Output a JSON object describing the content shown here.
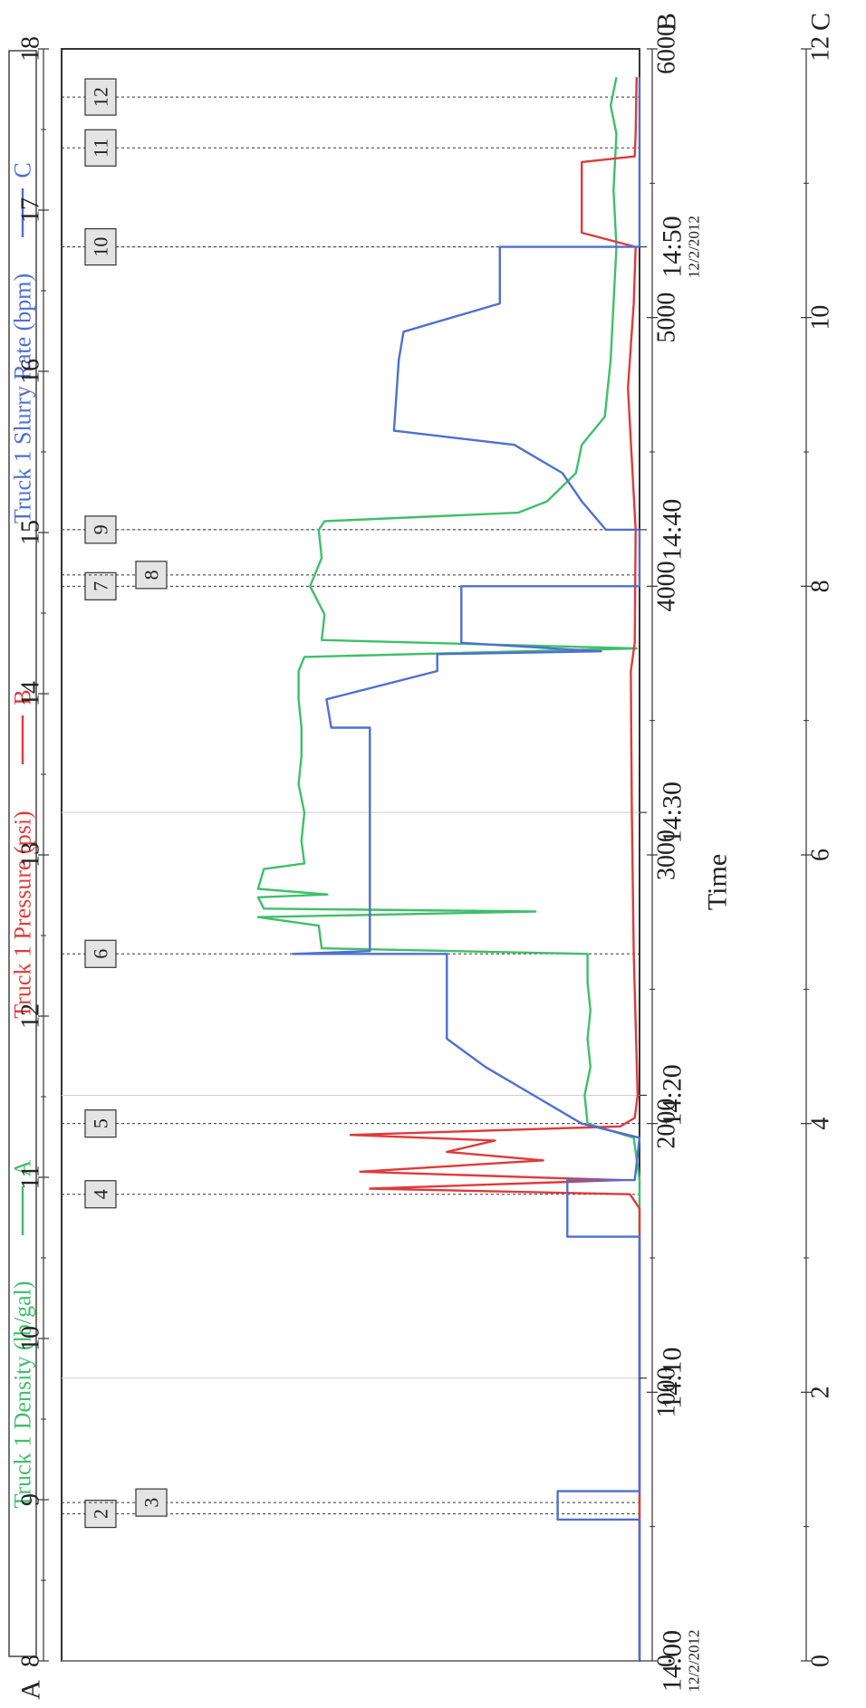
{
  "chart_data": {
    "type": "line",
    "orientation": "rotated-90-counterclockwise",
    "x_axis": {
      "label": "Time",
      "date_label": "12/2/2012",
      "ticks": [
        "14:00",
        "14:10",
        "14:20",
        "14:30",
        "14:40",
        "14:50"
      ],
      "range": [
        "14:00",
        "14:57"
      ]
    },
    "axes": [
      {
        "key": "A",
        "letter": "A",
        "range": [
          8,
          18
        ],
        "ticks": [
          "8",
          "9",
          "10",
          "11",
          "12",
          "13",
          "14",
          "15",
          "16",
          "17",
          "18"
        ]
      },
      {
        "key": "B",
        "letter": "B",
        "range": [
          0,
          6000
        ],
        "ticks": [
          "0",
          "1000",
          "2000",
          "3000",
          "4000",
          "5000",
          "6000"
        ]
      },
      {
        "key": "C",
        "letter": "C",
        "range": [
          0,
          12
        ],
        "ticks": [
          "0",
          "2",
          "4",
          "6",
          "8",
          "10",
          "12"
        ]
      }
    ],
    "legend_placement": "top",
    "grid": true,
    "series": [
      {
        "name": "Truck 1 Density (lb/gal)",
        "axis": "A",
        "axis_letter": "A",
        "color": "#3fbf6a",
        "points": [
          [
            "14:00",
            8.0
          ],
          [
            "14:17",
            8.0
          ],
          [
            "14:18.5",
            8.1
          ],
          [
            "14:19",
            8.9
          ],
          [
            "14:20",
            8.95
          ],
          [
            "14:21",
            8.85
          ],
          [
            "14:22",
            8.9
          ],
          [
            "14:23",
            8.85
          ],
          [
            "14:24",
            8.9
          ],
          [
            "14:25",
            8.9
          ],
          [
            "14:25.2",
            13.5
          ],
          [
            "14:26",
            13.55
          ],
          [
            "14:26.3",
            14.6
          ],
          [
            "14:26.5",
            9.8
          ],
          [
            "14:26.6",
            14.5
          ],
          [
            "14:27",
            14.6
          ],
          [
            "14:27.1",
            13.4
          ],
          [
            "14:27.3",
            14.6
          ],
          [
            "14:28",
            14.5
          ],
          [
            "14:28.2",
            13.8
          ],
          [
            "14:29",
            13.85
          ],
          [
            "14:30",
            13.8
          ],
          [
            "14:31",
            13.9
          ],
          [
            "14:32",
            13.85
          ],
          [
            "14:33",
            13.85
          ],
          [
            "14:34",
            13.9
          ],
          [
            "14:35",
            13.9
          ],
          [
            "14:35.5",
            13.8
          ],
          [
            "14:35.8",
            8.05
          ],
          [
            "14:36.1",
            13.5
          ],
          [
            "14:37",
            13.45
          ],
          [
            "14:38",
            13.7
          ],
          [
            "14:39",
            13.5
          ],
          [
            "14:40",
            13.55
          ],
          [
            "14:40.3",
            13.45
          ],
          [
            "14:40.6",
            10.1
          ],
          [
            "14:41",
            9.6
          ],
          [
            "14:42",
            9.1
          ],
          [
            "14:43",
            9.0
          ],
          [
            "14:44",
            8.6
          ],
          [
            "14:46",
            8.5
          ],
          [
            "14:48",
            8.45
          ],
          [
            "14:50",
            8.4
          ],
          [
            "14:52",
            8.45
          ],
          [
            "14:54",
            8.4
          ],
          [
            "14:55",
            8.5
          ],
          [
            "14:56",
            8.4
          ]
        ]
      },
      {
        "name": "Truck 1 Pressure (psi)",
        "axis": "B",
        "axis_letter": "B",
        "color": "#e03a3a",
        "points": [
          [
            "14:00",
            0
          ],
          [
            "14:16",
            0
          ],
          [
            "14:16.5",
            100
          ],
          [
            "14:16.7",
            2800
          ],
          [
            "14:17",
            200
          ],
          [
            "14:17.3",
            2900
          ],
          [
            "14:17.7",
            1000
          ],
          [
            "14:18",
            2000
          ],
          [
            "14:18.4",
            1500
          ],
          [
            "14:18.6",
            3000
          ],
          [
            "14:18.9",
            200
          ],
          [
            "14:19.2",
            50
          ],
          [
            "14:20",
            20
          ],
          [
            "14:25",
            60
          ],
          [
            "14:30",
            80
          ],
          [
            "14:35",
            90
          ],
          [
            "14:36",
            50
          ],
          [
            "14:40",
            40
          ],
          [
            "14:45",
            120
          ],
          [
            "14:48",
            60
          ],
          [
            "14:50",
            40
          ],
          [
            "14:50.5",
            600
          ],
          [
            "14:53",
            600
          ],
          [
            "14:53.2",
            50
          ],
          [
            "14:54",
            40
          ],
          [
            "14:56",
            30
          ]
        ]
      },
      {
        "name": "Truck 1 Slurry Rate (bpm)",
        "axis": "C",
        "axis_letter": "C",
        "color": "#4f6fd0",
        "points": [
          [
            "14:00",
            0
          ],
          [
            "14:05",
            0
          ],
          [
            "14:05",
            1.7
          ],
          [
            "14:06",
            1.7
          ],
          [
            "14:06",
            0
          ],
          [
            "14:15",
            0
          ],
          [
            "14:15",
            1.5
          ],
          [
            "14:17",
            1.5
          ],
          [
            "14:17",
            0.1
          ],
          [
            "14:18.5",
            0
          ],
          [
            "14:19",
            1.2
          ],
          [
            "14:20",
            2.2
          ],
          [
            "14:21",
            3.2
          ],
          [
            "14:22",
            4.0
          ],
          [
            "14:25",
            4.0
          ],
          [
            "14:25",
            7.2
          ],
          [
            "14:25.1",
            5.6
          ],
          [
            "14:26",
            5.6
          ],
          [
            "14:33",
            5.6
          ],
          [
            "14:33",
            6.4
          ],
          [
            "14:34",
            6.5
          ],
          [
            "14:35",
            4.2
          ],
          [
            "14:35.6",
            4.2
          ],
          [
            "14:35.7",
            0.8
          ],
          [
            "14:36",
            3.7
          ],
          [
            "14:38",
            3.7
          ],
          [
            "14:38",
            0
          ],
          [
            "14:40",
            0
          ],
          [
            "14:40",
            0.7
          ],
          [
            "14:41",
            1.2
          ],
          [
            "14:42",
            1.6
          ],
          [
            "14:43",
            2.6
          ],
          [
            "14:43.5",
            5.1
          ],
          [
            "14:46",
            5.0
          ],
          [
            "14:47",
            4.9
          ],
          [
            "14:48",
            2.9
          ],
          [
            "14:50",
            2.9
          ],
          [
            "14:50",
            0
          ],
          [
            "14:56",
            0
          ]
        ]
      }
    ],
    "event_markers": [
      {
        "label": "2",
        "time": "14:05.2",
        "row": 1
      },
      {
        "label": "3",
        "time": "14:05.6",
        "row": 2
      },
      {
        "label": "4",
        "time": "14:16.5",
        "row": 1
      },
      {
        "label": "5",
        "time": "14:19",
        "row": 1
      },
      {
        "label": "6",
        "time": "14:25",
        "row": 1
      },
      {
        "label": "7",
        "time": "14:38.0",
        "row": 1
      },
      {
        "label": "8",
        "time": "14:38.4",
        "row": 2
      },
      {
        "label": "9",
        "time": "14:40",
        "row": 1
      },
      {
        "label": "10",
        "time": "14:50",
        "row": 1
      },
      {
        "label": "11",
        "time": "14:53.5",
        "row": 1
      },
      {
        "label": "12",
        "time": "14:55.3",
        "row": 1
      }
    ]
  }
}
